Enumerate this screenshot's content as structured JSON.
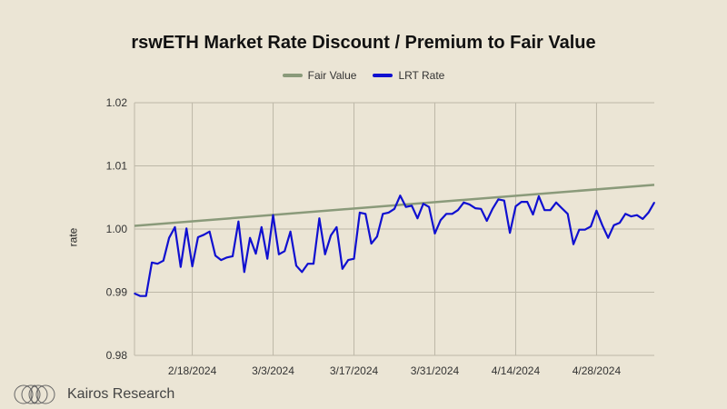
{
  "chart_data": {
    "type": "line",
    "title": "rswETH Market Rate Discount / Premium to Fair Value",
    "xlabel": "",
    "ylabel": "rate",
    "ylim": [
      0.98,
      1.02
    ],
    "yticks": [
      "0.98",
      "0.99",
      "1.00",
      "1.01",
      "1.02"
    ],
    "xticks": [
      "2/18/2024",
      "3/3/2024",
      "3/17/2024",
      "3/31/2024",
      "4/14/2024",
      "4/28/2024"
    ],
    "grid": true,
    "legend_position": "top",
    "x": [
      "2/8/2024",
      "2/9/2024",
      "2/10/2024",
      "2/11/2024",
      "2/12/2024",
      "2/13/2024",
      "2/14/2024",
      "2/15/2024",
      "2/16/2024",
      "2/17/2024",
      "2/18/2024",
      "2/19/2024",
      "2/20/2024",
      "2/21/2024",
      "2/22/2024",
      "2/23/2024",
      "2/24/2024",
      "2/25/2024",
      "2/26/2024",
      "2/27/2024",
      "2/28/2024",
      "2/29/2024",
      "3/1/2024",
      "3/2/2024",
      "3/3/2024",
      "3/4/2024",
      "3/5/2024",
      "3/6/2024",
      "3/7/2024",
      "3/8/2024",
      "3/9/2024",
      "3/10/2024",
      "3/11/2024",
      "3/12/2024",
      "3/13/2024",
      "3/14/2024",
      "3/15/2024",
      "3/16/2024",
      "3/17/2024",
      "3/18/2024",
      "3/19/2024",
      "3/20/2024",
      "3/21/2024",
      "3/22/2024",
      "3/23/2024",
      "3/24/2024",
      "3/25/2024",
      "3/26/2024",
      "3/27/2024",
      "3/28/2024",
      "3/29/2024",
      "3/30/2024",
      "3/31/2024",
      "4/1/2024",
      "4/2/2024",
      "4/3/2024",
      "4/4/2024",
      "4/5/2024",
      "4/6/2024",
      "4/7/2024",
      "4/8/2024",
      "4/9/2024",
      "4/10/2024",
      "4/11/2024",
      "4/12/2024",
      "4/13/2024",
      "4/14/2024",
      "4/15/2024",
      "4/16/2024",
      "4/17/2024",
      "4/18/2024",
      "4/19/2024",
      "4/20/2024",
      "4/21/2024",
      "4/22/2024",
      "4/23/2024",
      "4/24/2024",
      "4/25/2024",
      "4/26/2024",
      "4/27/2024",
      "4/28/2024",
      "4/29/2024",
      "4/30/2024",
      "5/1/2024",
      "5/2/2024",
      "5/3/2024",
      "5/4/2024",
      "5/5/2024",
      "5/6/2024",
      "5/7/2024",
      "5/8/2024"
    ],
    "series": [
      {
        "name": "Fair Value",
        "color": "#8a9a7a",
        "start": 1.0005,
        "end": 1.007
      },
      {
        "name": "LRT Rate",
        "color": "#1010d0",
        "values": [
          0.9898,
          0.9894,
          0.9894,
          0.9947,
          0.9945,
          0.995,
          0.9986,
          1.0003,
          0.994,
          1.0001,
          0.9941,
          0.9987,
          0.9991,
          0.9996,
          0.9958,
          0.9951,
          0.9955,
          0.9957,
          1.0012,
          0.9932,
          0.9986,
          0.9961,
          1.0003,
          0.9953,
          1.0022,
          0.996,
          0.9965,
          0.9996,
          0.9942,
          0.9932,
          0.9945,
          0.9945,
          1.0017,
          0.996,
          0.999,
          1.0003,
          0.9937,
          0.9951,
          0.9953,
          1.0026,
          1.0024,
          0.9977,
          0.9988,
          1.0024,
          1.0026,
          1.0032,
          1.0053,
          1.0035,
          1.0037,
          1.0017,
          1.004,
          1.0035,
          0.9993,
          1.0014,
          1.0024,
          1.0024,
          1.003,
          1.0042,
          1.0039,
          1.0033,
          1.0032,
          1.0013,
          1.0032,
          1.0047,
          1.0045,
          0.9994,
          1.0036,
          1.0043,
          1.0043,
          1.0023,
          1.0052,
          1.003,
          1.003,
          1.0042,
          1.0033,
          1.0024,
          0.9976,
          0.9999,
          0.9999,
          1.0004,
          1.0029,
          1.0006,
          0.9986,
          1.0006,
          1.001,
          1.0024,
          1.002,
          1.0022,
          1.0016,
          1.0026,
          1.0042
        ]
      }
    ]
  },
  "brand": {
    "name": "Kairos Research"
  }
}
